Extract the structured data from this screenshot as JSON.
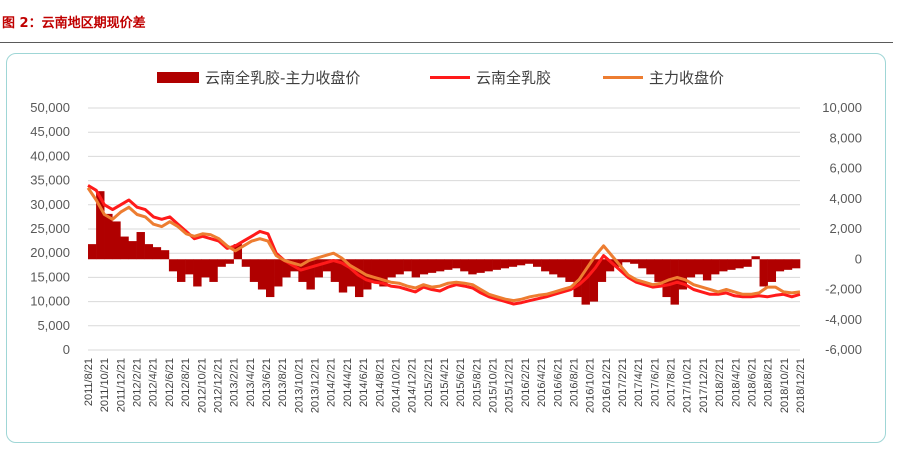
{
  "figure": {
    "title": "图 2：云南地区期现价差"
  },
  "colors": {
    "spread": "#b00000",
    "spot": "#ff1a1a",
    "futures": "#ed7d31",
    "grid": "#d9d9d9"
  },
  "chart_data": {
    "type": "line",
    "title": "",
    "legend_position": "top",
    "grid": true,
    "y_left": {
      "ylim": [
        0,
        50000
      ],
      "ticks": [
        "50,000",
        "45,000",
        "40,000",
        "35,000",
        "30,000",
        "25,000",
        "20,000",
        "15,000",
        "10,000",
        "5,000",
        "0"
      ]
    },
    "y_right": {
      "ylim": [
        -6000,
        10000
      ],
      "ticks": [
        "10,000",
        "8,000",
        "6,000",
        "4,000",
        "2,000",
        "0",
        "-2,000",
        "-4,000",
        "-6,000"
      ]
    },
    "x_ticks": [
      "2011/8/21",
      "2011/10/21",
      "2011/12/21",
      "2012/2/21",
      "2012/4/21",
      "2012/6/21",
      "2012/8/21",
      "2012/10/21",
      "2012/12/21",
      "2013/2/21",
      "2013/4/21",
      "2013/6/21",
      "2013/8/21",
      "2013/10/21",
      "2013/12/21",
      "2014/2/21",
      "2014/4/21",
      "2014/6/21",
      "2014/8/21",
      "2014/10/21",
      "2014/12/21",
      "2015/2/21",
      "2015/4/21",
      "2015/6/21",
      "2015/8/21",
      "2015/10/21",
      "2015/12/21",
      "2016/2/21",
      "2016/4/21",
      "2016/6/21",
      "2016/8/21",
      "2016/10/21",
      "2016/12/21",
      "2017/2/21",
      "2017/4/21",
      "2017/6/21",
      "2017/8/21",
      "2017/10/21",
      "2017/12/21",
      "2018/2/21",
      "2018/4/21",
      "2018/6/21",
      "2018/8/21",
      "2018/10/21",
      "2018/12/21"
    ],
    "series": [
      {
        "name": "云南全乳胶-主力收盘价",
        "type": "bar",
        "axis": "right",
        "values": [
          1000,
          4500,
          3000,
          2500,
          1500,
          1200,
          1800,
          1000,
          800,
          600,
          -800,
          -1500,
          -1000,
          -1800,
          -1200,
          -1500,
          -500,
          -300,
          1000,
          -500,
          -1500,
          -2000,
          -2500,
          -1800,
          -1200,
          -800,
          -1500,
          -2000,
          -1200,
          -800,
          -1500,
          -2200,
          -1800,
          -2500,
          -2000,
          -1500,
          -1800,
          -1200,
          -1000,
          -800,
          -1200,
          -1000,
          -900,
          -800,
          -700,
          -600,
          -800,
          -1000,
          -900,
          -800,
          -700,
          -600,
          -500,
          -400,
          -300,
          -500,
          -800,
          -1000,
          -1200,
          -1500,
          -2500,
          -3000,
          -2800,
          -1500,
          -800,
          -500,
          -200,
          -300,
          -600,
          -1000,
          -1500,
          -2500,
          -3000,
          -2000,
          -1200,
          -1000,
          -1400,
          -1000,
          -800,
          -700,
          -600,
          -500,
          200,
          -1800,
          -1500,
          -800,
          -700,
          -600
        ]
      },
      {
        "name": "云南全乳胶",
        "type": "line",
        "axis": "left",
        "values": [
          34000,
          33000,
          30000,
          29000,
          30000,
          31000,
          29500,
          29000,
          27500,
          27000,
          27500,
          26000,
          24500,
          23000,
          23500,
          23000,
          22500,
          21000,
          21500,
          22500,
          23500,
          24500,
          24000,
          20000,
          18500,
          17500,
          16500,
          17000,
          17500,
          18000,
          18500,
          18000,
          17000,
          15500,
          14500,
          14000,
          13800,
          13200,
          13000,
          12500,
          12000,
          13000,
          12500,
          12200,
          13000,
          13500,
          13200,
          12800,
          11800,
          11000,
          10500,
          10000,
          9500,
          9800,
          10200,
          10600,
          11000,
          11500,
          12000,
          12500,
          13500,
          15000,
          17000,
          19500,
          18000,
          16500,
          15000,
          14000,
          13500,
          13000,
          13200,
          13500,
          14000,
          13500,
          12500,
          12000,
          11500,
          11500,
          11800,
          11200,
          11000,
          11000,
          11200,
          11000,
          11300,
          11500,
          11000,
          11500
        ]
      },
      {
        "name": "主力收盘价",
        "type": "line",
        "axis": "left",
        "values": [
          33500,
          31000,
          28000,
          27000,
          28500,
          29500,
          28000,
          27500,
          26000,
          25500,
          26500,
          25500,
          24000,
          23500,
          24000,
          23800,
          23000,
          21500,
          20500,
          21500,
          22500,
          23000,
          22500,
          19500,
          18500,
          18000,
          17500,
          18500,
          19000,
          19500,
          20000,
          19000,
          17500,
          16500,
          15500,
          15000,
          14500,
          14000,
          13800,
          13200,
          12800,
          13500,
          13000,
          13200,
          13800,
          14000,
          13800,
          13500,
          12500,
          11500,
          11000,
          10500,
          10200,
          10500,
          11000,
          11300,
          11500,
          12000,
          12500,
          13000,
          14500,
          17000,
          19500,
          21500,
          19500,
          17500,
          15500,
          14500,
          14000,
          13500,
          13800,
          14500,
          15000,
          14500,
          13500,
          13000,
          12500,
          12000,
          12500,
          12000,
          11500,
          11500,
          11800,
          13000,
          13000,
          12000,
          11800,
          12000
        ]
      }
    ]
  }
}
